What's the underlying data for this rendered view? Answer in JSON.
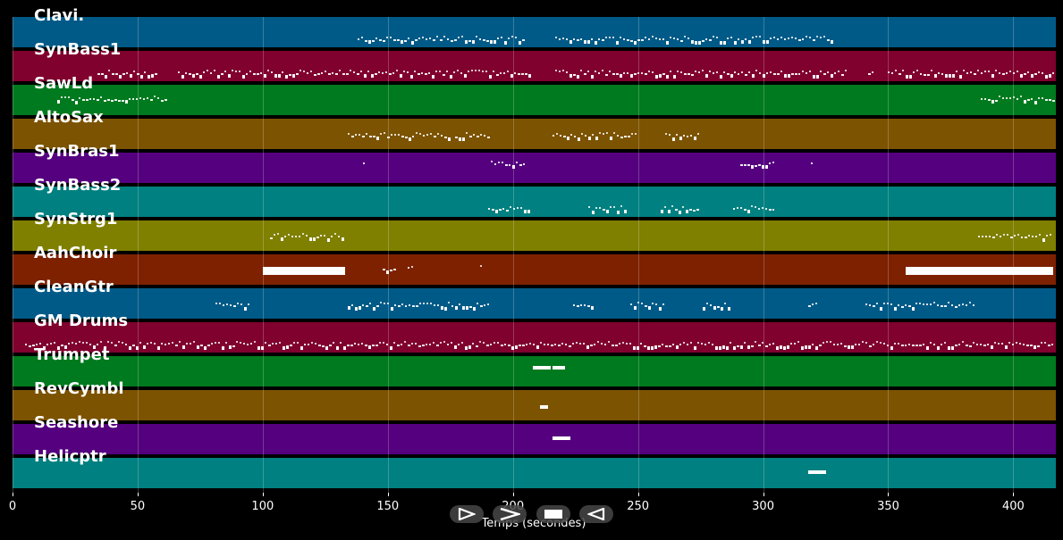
{
  "tracks": [
    {
      "name": "Clavi.",
      "color": "#005a87",
      "marks": [
        [
          138,
          205,
          0.75,
          1,
          "dots"
        ],
        [
          217,
          328,
          0.75,
          1,
          "dots"
        ]
      ]
    },
    {
      "name": "SynBass1",
      "color": "#80002e",
      "marks": [
        [
          34,
          58,
          0.75,
          1,
          "dots"
        ],
        [
          66,
          207,
          0.75,
          1,
          "dots"
        ],
        [
          217,
          333,
          0.75,
          1,
          "dots"
        ],
        [
          342,
          344,
          0.75,
          1,
          "dots"
        ],
        [
          350,
          416,
          0.75,
          1,
          "dots"
        ]
      ]
    },
    {
      "name": "SawLd",
      "color": "#007a1e",
      "marks": [
        [
          18,
          62,
          0.5,
          1,
          "dots"
        ],
        [
          387,
          416,
          0.5,
          1,
          "dots"
        ]
      ]
    },
    {
      "name": "AltoSax",
      "color": "#7c5300",
      "marks": [
        [
          134,
          175,
          0.6,
          1,
          "dots"
        ],
        [
          177,
          190,
          0.6,
          1,
          "dots"
        ],
        [
          216,
          249,
          0.6,
          1,
          "dots"
        ],
        [
          261,
          275,
          0.6,
          1,
          "dots"
        ]
      ]
    },
    {
      "name": "SynBras1",
      "color": "#55007f",
      "marks": [
        [
          140,
          141,
          0.4,
          1,
          "dots"
        ],
        [
          191,
          205,
          0.4,
          1,
          "dots"
        ],
        [
          291,
          305,
          0.4,
          1,
          "dots"
        ],
        [
          319,
          320,
          0.4,
          1,
          "dots"
        ]
      ]
    },
    {
      "name": "SynBass2",
      "color": "#008080",
      "marks": [
        [
          190,
          206,
          0.75,
          1,
          "dots"
        ],
        [
          230,
          245,
          0.75,
          1,
          "dots"
        ],
        [
          259,
          274,
          0.75,
          1,
          "dots"
        ],
        [
          288,
          304,
          0.75,
          1,
          "dots"
        ]
      ]
    },
    {
      "name": "SynStrg1",
      "color": "#7f7f00",
      "marks": [
        [
          103,
          133,
          0.55,
          1,
          "dots"
        ],
        [
          386,
          416,
          0.55,
          1,
          "dots"
        ]
      ]
    },
    {
      "name": "AahChoir",
      "color": "#7e2100",
      "marks": [
        [
          100,
          133,
          0.5,
          1,
          "bar"
        ],
        [
          148,
          153,
          0.5,
          1,
          "dots"
        ],
        [
          158,
          160,
          0.5,
          1,
          "dots"
        ],
        [
          187,
          188,
          0.5,
          1,
          "dots"
        ],
        [
          357,
          416,
          0.5,
          1,
          "bar"
        ]
      ]
    },
    {
      "name": "CleanGtr",
      "color": "#005a87",
      "marks": [
        [
          81,
          95,
          0.6,
          1,
          "dots"
        ],
        [
          134,
          190,
          0.6,
          1,
          "dots"
        ],
        [
          224,
          232,
          0.6,
          1,
          "dots"
        ],
        [
          247,
          261,
          0.6,
          1,
          "dots"
        ],
        [
          276,
          287,
          0.6,
          1,
          "dots"
        ],
        [
          318,
          322,
          0.6,
          1,
          "dots"
        ],
        [
          341,
          385,
          0.6,
          1,
          "dots"
        ]
      ]
    },
    {
      "name": "GM Drums",
      "color": "#80002e",
      "marks": [
        [
          5,
          416,
          0.75,
          1,
          "dots"
        ]
      ]
    },
    {
      "name": "Trumpet",
      "color": "#007a1e",
      "marks": [
        [
          208,
          215,
          0.4,
          1,
          "bar"
        ],
        [
          216,
          221,
          0.4,
          1,
          "bar"
        ]
      ]
    },
    {
      "name": "RevCymbl",
      "color": "#7c5300",
      "marks": [
        [
          211,
          214,
          0.6,
          1,
          "bar"
        ]
      ]
    },
    {
      "name": "Seashore",
      "color": "#55007f",
      "marks": [
        [
          216,
          223,
          0.5,
          1,
          "bar"
        ]
      ]
    },
    {
      "name": "Helicptr",
      "color": "#008080",
      "marks": [
        [
          318,
          325,
          0.5,
          1,
          "bar"
        ]
      ]
    }
  ],
  "axis": {
    "label": "Temps (secondes)",
    "min": 0,
    "max": 417,
    "ticks": [
      {
        "value": 0,
        "label": "0"
      },
      {
        "value": 50,
        "label": "50"
      },
      {
        "value": 100,
        "label": "100"
      },
      {
        "value": 150,
        "label": "150"
      },
      {
        "value": 200,
        "label": "200"
      },
      {
        "value": 250,
        "label": "250"
      },
      {
        "value": 300,
        "label": "300"
      },
      {
        "value": 350,
        "label": "350"
      },
      {
        "value": 400,
        "label": "400"
      }
    ]
  },
  "controls": [
    {
      "name": "play-icon"
    },
    {
      "name": "fast-forward-icon"
    },
    {
      "name": "stop-icon"
    },
    {
      "name": "rewind-icon"
    }
  ]
}
